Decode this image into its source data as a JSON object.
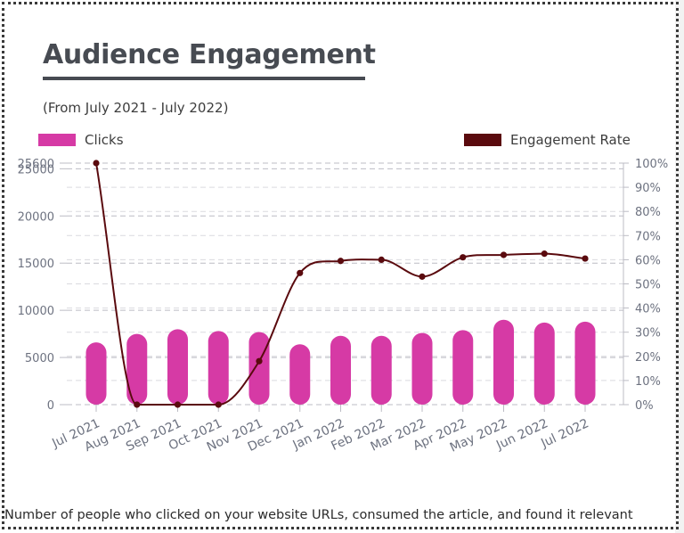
{
  "title": "Audience Engagement",
  "subtitle": "(From July 2021 - July 2022)",
  "footer": "Number of people who clicked on your website URLs, consumed the article, and found it relevant",
  "colors": {
    "clicks": "#d63aa5",
    "engagement": "#5a0a0e",
    "grid": "#bcbcc4",
    "tick_text": "#6d7280",
    "title": "#474b52"
  },
  "legend": {
    "clicks_label": "Clicks",
    "engagement_label": "Engagement Rate"
  },
  "chart_data": {
    "type": "bar",
    "title": "Audience Engagement",
    "subtitle": "(From July 2021 - July 2022)",
    "categories": [
      "Jul 2021",
      "Aug 2021",
      "Sep 2021",
      "Oct 2021",
      "Nov 2021",
      "Dec 2021",
      "Jan 2022",
      "Feb 2022",
      "Mar 2022",
      "Apr 2022",
      "May 2022",
      "Jun 2022",
      "Jul 2022"
    ],
    "series": [
      {
        "name": "Clicks",
        "type": "bar",
        "axis": "left",
        "values": [
          6600,
          7500,
          8000,
          7800,
          7700,
          6400,
          7300,
          7300,
          7600,
          7900,
          9000,
          8700,
          8800
        ]
      },
      {
        "name": "Engagement Rate",
        "type": "line",
        "axis": "right",
        "values": [
          100,
          0,
          0,
          0,
          18,
          54.5,
          59.5,
          60,
          53,
          61,
          62,
          62.5,
          60.5
        ]
      }
    ],
    "left_axis": {
      "ylim": [
        0,
        25600
      ],
      "ticks": [
        0,
        5000,
        10000,
        15000,
        20000,
        25000,
        25600
      ],
      "tick_labels": [
        "0",
        "5000",
        "10000",
        "15000",
        "20000",
        "25000",
        "25600"
      ]
    },
    "right_axis": {
      "ylim": [
        0,
        100
      ],
      "ticks": [
        0,
        10,
        20,
        30,
        40,
        50,
        60,
        70,
        80,
        90,
        100
      ],
      "tick_labels": [
        "0%",
        "10%",
        "20%",
        "30%",
        "40%",
        "50%",
        "60%",
        "70%",
        "80%",
        "90%",
        "100%"
      ]
    },
    "grid": true,
    "legend_position": "top"
  }
}
